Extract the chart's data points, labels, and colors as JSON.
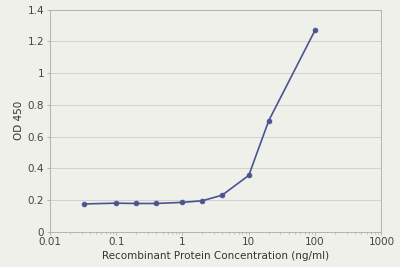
{
  "x_values": [
    0.0329,
    0.0988,
    0.198,
    0.395,
    1.0,
    1.98,
    3.95,
    10.0,
    20.0,
    100.0
  ],
  "y_values": [
    0.175,
    0.18,
    0.178,
    0.178,
    0.185,
    0.195,
    0.23,
    0.355,
    0.7,
    1.27
  ],
  "line_color": "#4a5490",
  "marker_color": "#4a5490",
  "marker_size": 3.5,
  "line_width": 1.2,
  "xlabel": "Recombinant Protein Concentration (ng/ml)",
  "ylabel": "OD 450",
  "xlim": [
    0.01,
    1000
  ],
  "ylim": [
    0,
    1.4
  ],
  "yticks": [
    0,
    0.2,
    0.4,
    0.6,
    0.8,
    1.0,
    1.2,
    1.4
  ],
  "ytick_labels": [
    "0",
    "0.2",
    "0.4",
    "0.6",
    "0.8",
    "1",
    "1.2",
    "1.4"
  ],
  "xticks": [
    0.01,
    0.1,
    1,
    10,
    100,
    1000
  ],
  "xtick_labels": [
    "0.01",
    "0.1",
    "1",
    "10",
    "100",
    "1000"
  ],
  "background_color": "#f0f0ea",
  "plot_bg_color": "#f0f0ea",
  "grid_color": "#cccccc",
  "xlabel_fontsize": 7.5,
  "ylabel_fontsize": 7.5,
  "tick_fontsize": 7.5,
  "spine_color": "#aaaaaa"
}
